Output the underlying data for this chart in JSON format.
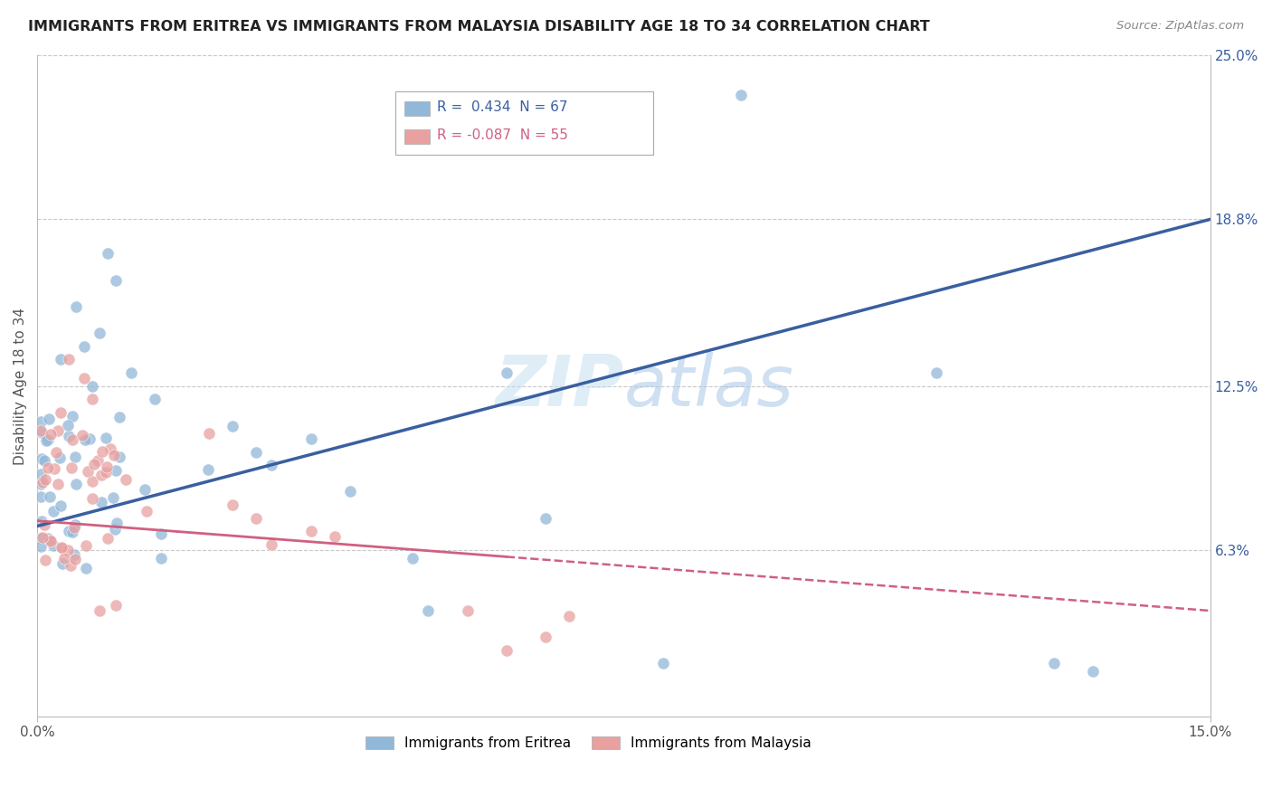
{
  "title": "IMMIGRANTS FROM ERITREA VS IMMIGRANTS FROM MALAYSIA DISABILITY AGE 18 TO 34 CORRELATION CHART",
  "source": "Source: ZipAtlas.com",
  "ylabel": "Disability Age 18 to 34",
  "xmin": 0.0,
  "xmax": 0.15,
  "ymin": 0.0,
  "ymax": 0.25,
  "ytick_vals": [
    0.063,
    0.125,
    0.188,
    0.25
  ],
  "ytick_labels": [
    "6.3%",
    "12.5%",
    "18.8%",
    "25.0%"
  ],
  "watermark": "ZIPatlas",
  "legend1_r": "0.434",
  "legend1_n": "67",
  "legend2_r": "-0.087",
  "legend2_n": "55",
  "color_eritrea": "#92b8d9",
  "color_malaysia": "#e8a0a0",
  "trendline_eritrea_color": "#3a5fa0",
  "trendline_malaysia_color": "#d06080",
  "trend_e_y0": 0.072,
  "trend_e_y1": 0.188,
  "trend_m_y0": 0.074,
  "trend_m_y1": 0.04,
  "trend_m_solid_end": 0.06,
  "trend_m_solid_y_end": 0.062
}
